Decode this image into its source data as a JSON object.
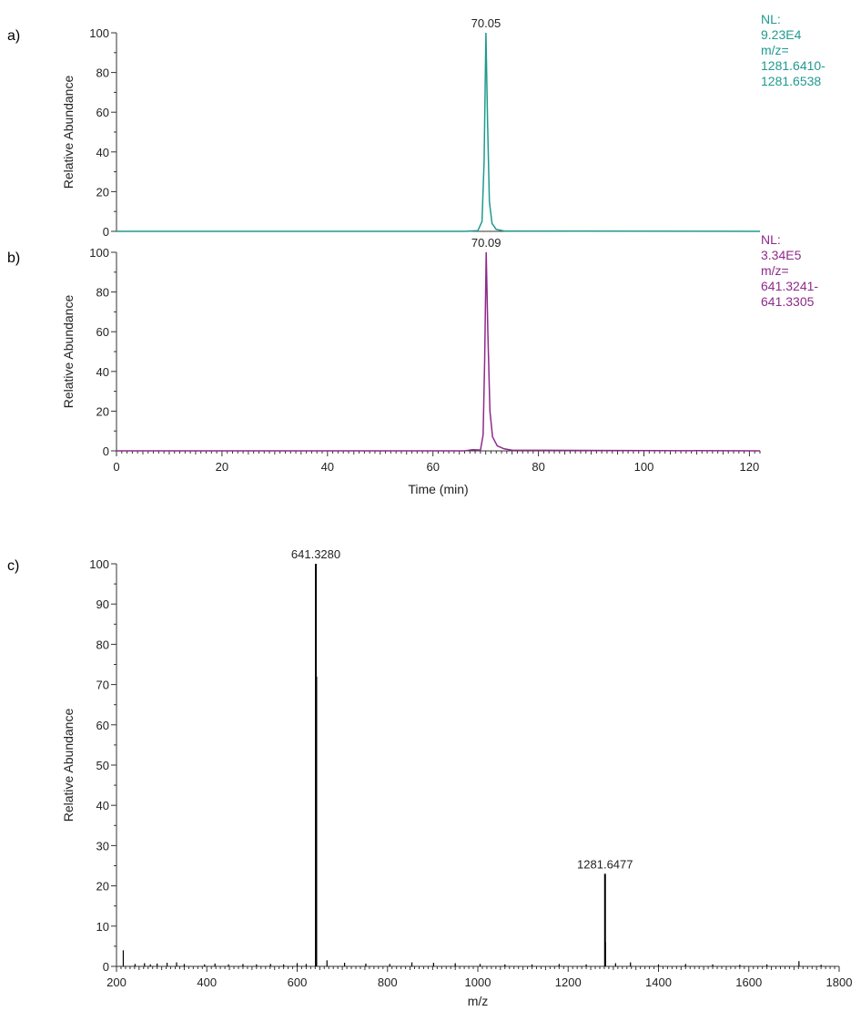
{
  "chart_data": [
    {
      "type": "line",
      "panel_label": "a)",
      "color": "#1f9a8f",
      "xlim": [
        0,
        122
      ],
      "ylim": [
        0,
        100
      ],
      "yticks": [
        0,
        20,
        40,
        60,
        80,
        100
      ],
      "xticks": [],
      "ylabel": "Relative Abundance",
      "xlabel": "",
      "grid": false,
      "peak": {
        "x": 70.05,
        "y": 100,
        "label": "70.05"
      },
      "info": [
        "NL:",
        "9.23E4",
        "m/z=",
        "1281.6410-",
        "1281.6538"
      ],
      "series": [
        {
          "x": [
            0,
            66.0,
            68.5,
            69.3,
            69.7,
            70.05,
            70.35,
            70.7,
            71.2,
            72.0,
            73.5,
            122
          ],
          "y": [
            0,
            0,
            0.3,
            5,
            35,
            100,
            55,
            15,
            4,
            1,
            0.2,
            0
          ]
        }
      ]
    },
    {
      "type": "line",
      "panel_label": "b)",
      "color": "#8e2a8a",
      "xlim": [
        0,
        122
      ],
      "ylim": [
        0,
        100
      ],
      "yticks": [
        0,
        20,
        40,
        60,
        80,
        100
      ],
      "xticks": [
        0,
        20,
        40,
        60,
        80,
        100,
        120
      ],
      "ylabel": "Relative Abundance",
      "xlabel": "Time (min)",
      "grid": false,
      "peak": {
        "x": 70.09,
        "y": 100,
        "label": "70.09"
      },
      "info": [
        "NL:",
        "3.34E5",
        "m/z=",
        "641.3241-",
        "641.3305"
      ],
      "series": [
        {
          "x": [
            0,
            66.0,
            67.5,
            69.0,
            69.5,
            69.8,
            70.09,
            70.4,
            70.8,
            71.3,
            72.2,
            73.5,
            75.0,
            122
          ],
          "y": [
            0,
            0,
            0.6,
            0.4,
            8,
            45,
            100,
            60,
            20,
            7,
            2.5,
            1,
            0.3,
            0
          ]
        }
      ]
    },
    {
      "type": "bar",
      "panel_label": "c)",
      "color": "#000000",
      "xlim": [
        200,
        1800
      ],
      "ylim": [
        0,
        100
      ],
      "yticks": [
        0,
        10,
        20,
        30,
        40,
        50,
        60,
        70,
        80,
        90,
        100
      ],
      "xticks": [
        200,
        400,
        600,
        800,
        1000,
        1200,
        1400,
        1600,
        1800
      ],
      "ylabel": "Relative Abundance",
      "xlabel": "m/z",
      "grid": false,
      "annotations": [
        {
          "x": 641.328,
          "y": 100,
          "label": "641.3280"
        },
        {
          "x": 1281.6477,
          "y": 23,
          "label": "1281.6477"
        }
      ],
      "series": [
        {
          "x": [
            215,
            241,
            262,
            275,
            290,
            312,
            333,
            350,
            395,
            418,
            448,
            480,
            510,
            541,
            570,
            600,
            620,
            641.328,
            642.3,
            666,
            705,
            752,
            805,
            854,
            902,
            950,
            1005,
            1060,
            1120,
            1180,
            1240,
            1281.6477,
            1282.6,
            1305,
            1338,
            1400,
            1460,
            1520,
            1580,
            1640,
            1711,
            1760
          ],
          "y": [
            4,
            0.6,
            0.8,
            0.5,
            0.7,
            0.9,
            1.0,
            0.6,
            0.5,
            0.7,
            0.5,
            0.6,
            0.5,
            0.6,
            0.5,
            0.8,
            0.6,
            100,
            72,
            1.5,
            0.9,
            0.7,
            0.6,
            1.0,
            0.9,
            0.8,
            0.6,
            0.5,
            0.5,
            0.6,
            0.5,
            23,
            6,
            0.8,
            1.0,
            0.5,
            0.6,
            0.5,
            0.4,
            0.5,
            1.3,
            0.4
          ]
        }
      ]
    }
  ]
}
